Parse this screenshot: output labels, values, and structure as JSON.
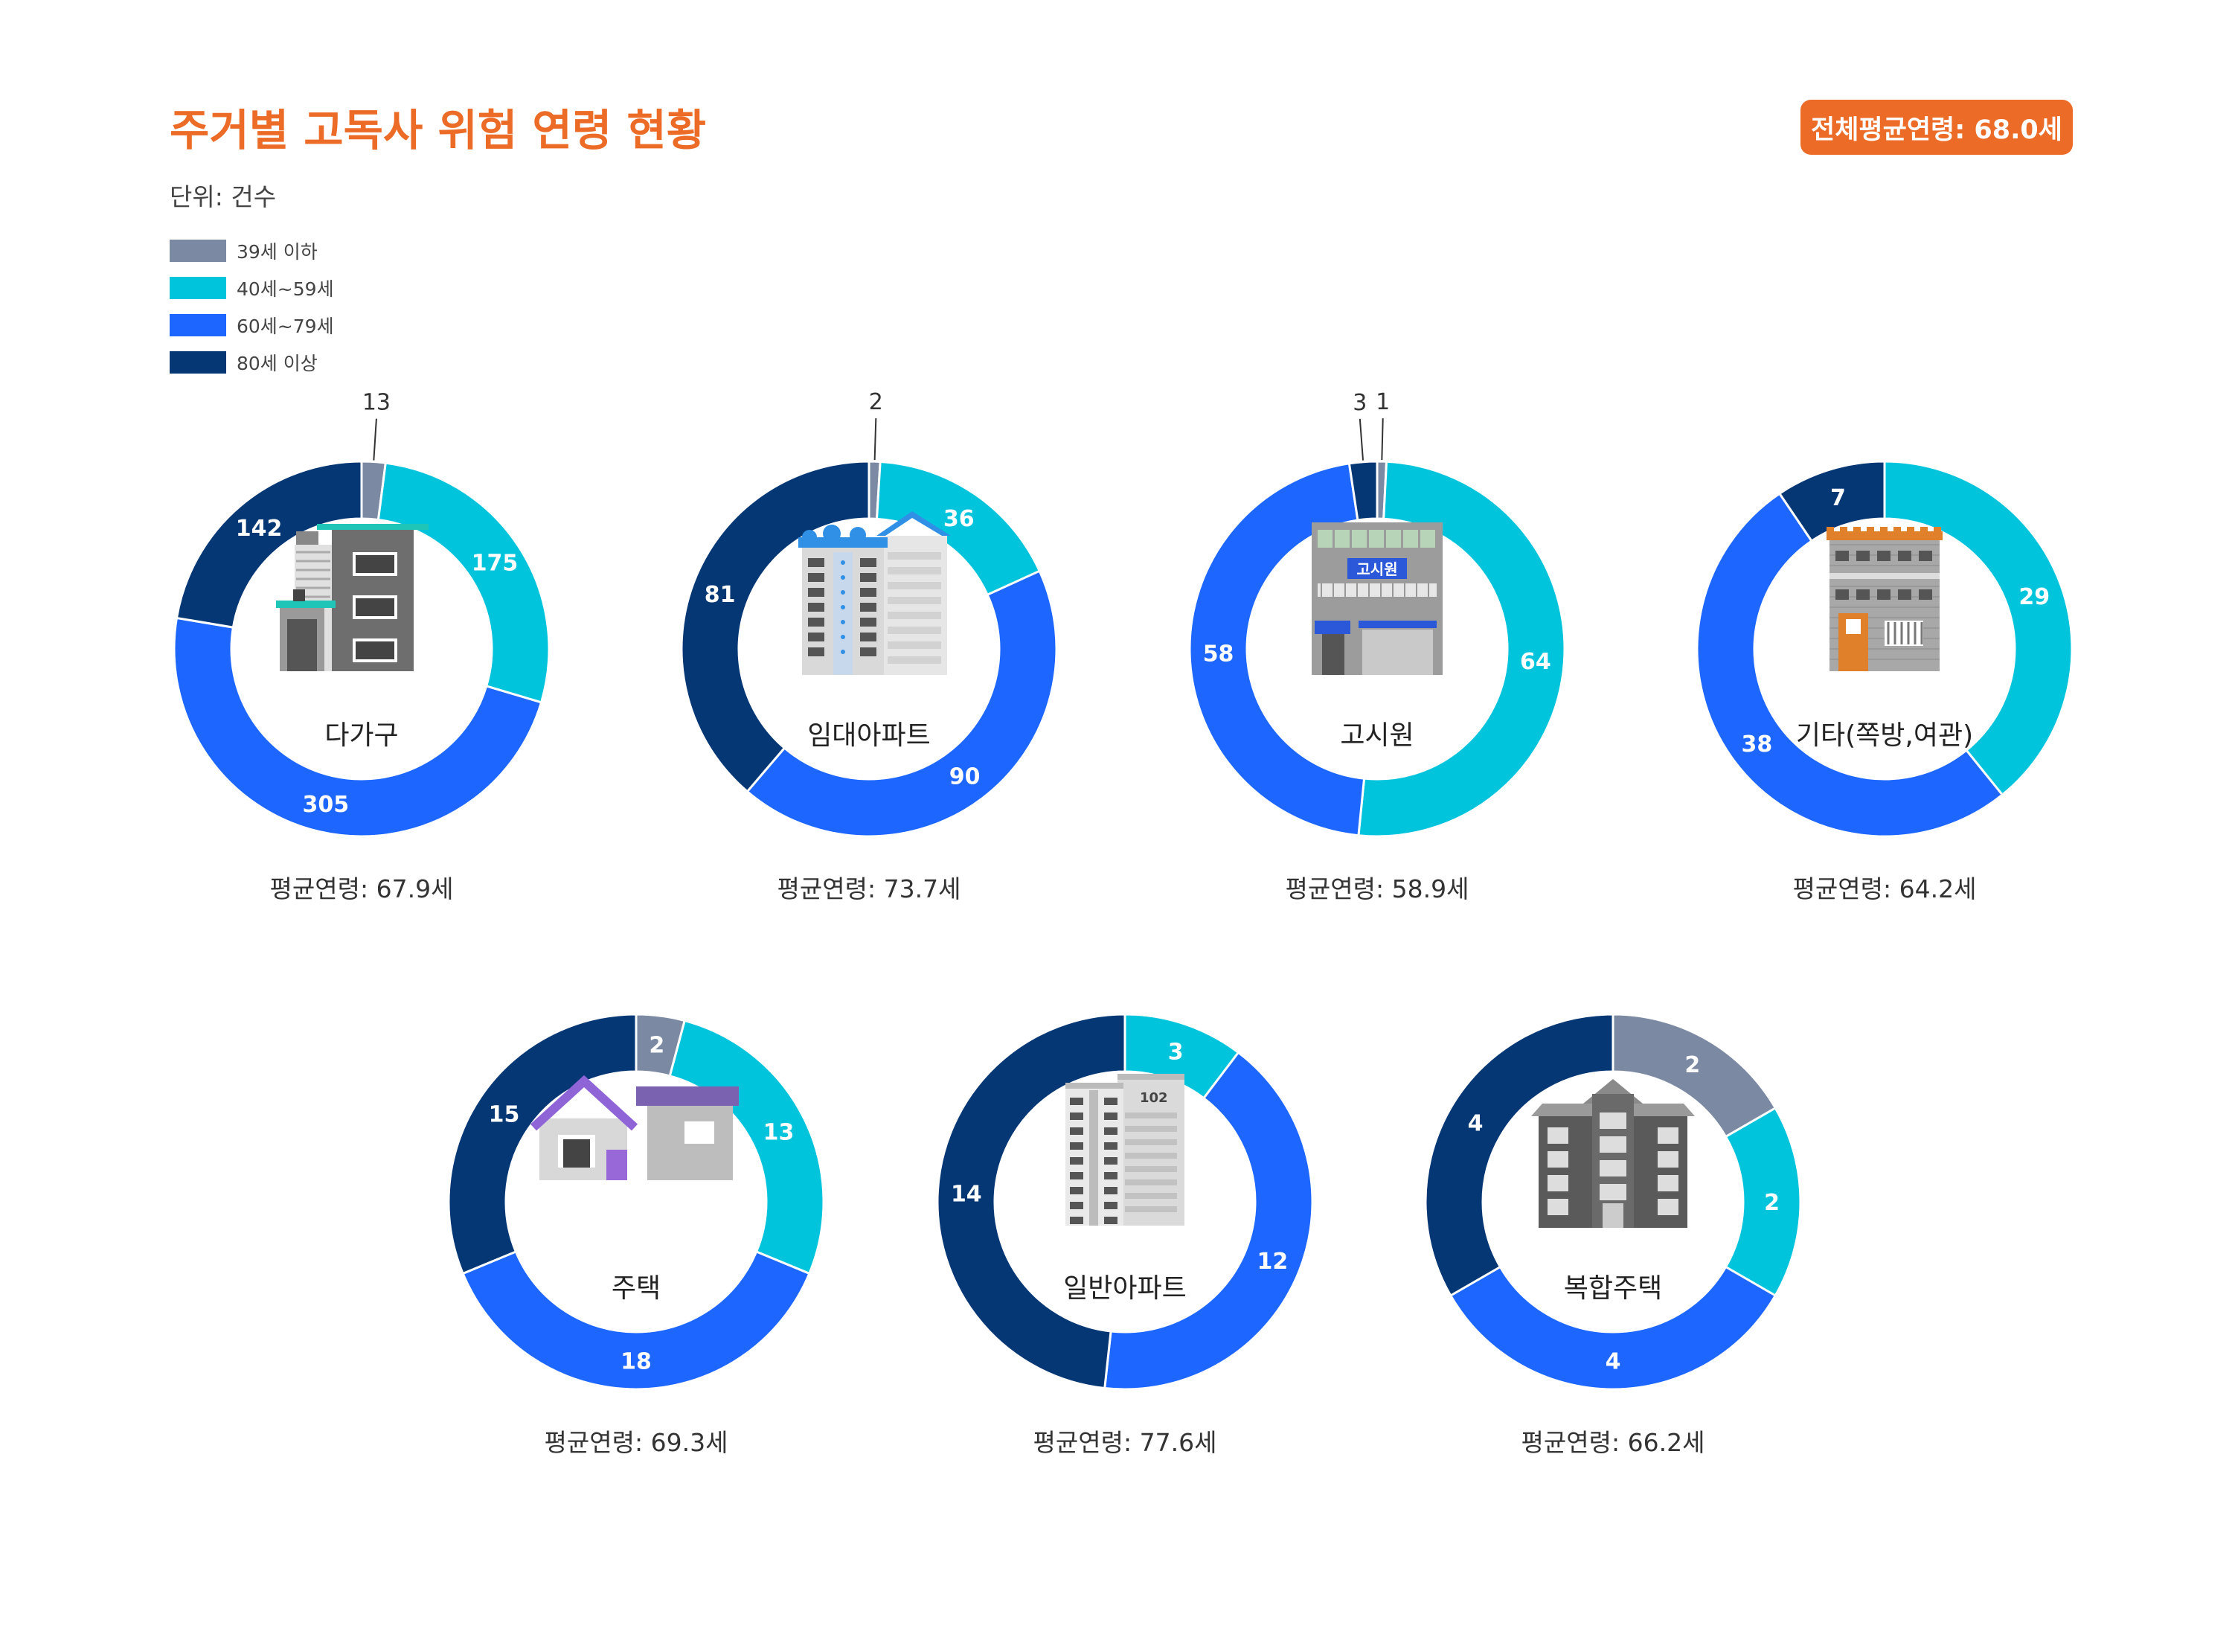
{
  "title": "주거별 고독사 위험 연령 현황",
  "overall_average": "전체평균연령: 68.0세",
  "unit": "단위: 건수",
  "legend": [
    {
      "label": "39세 이하",
      "color": "#7b89a3"
    },
    {
      "label": "40세~59세",
      "color": "#00c4dc"
    },
    {
      "label": "60세~79세",
      "color": "#1d66ff"
    },
    {
      "label": "80세 이상",
      "color": "#063775"
    }
  ],
  "chart_data": [
    {
      "type": "pie",
      "name": "다가구",
      "values": [
        13,
        175,
        305,
        142
      ],
      "average": "평균연령: 67.9세",
      "icon": "multi-family-house-icon"
    },
    {
      "type": "pie",
      "name": "임대아파트",
      "values": [
        2,
        36,
        90,
        81
      ],
      "average": "평균연령: 73.7세",
      "icon": "rental-apartment-icon"
    },
    {
      "type": "pie",
      "name": "고시원",
      "values": [
        1,
        64,
        58,
        3
      ],
      "average": "평균연령: 58.9세",
      "icon": "gosiwon-building-icon",
      "sign": "고시원"
    },
    {
      "type": "pie",
      "name": "기타(쪽방,여관)",
      "values": [
        0,
        29,
        38,
        7
      ],
      "average": "평균연령: 64.2세",
      "icon": "inn-building-icon"
    },
    {
      "type": "pie",
      "name": "주택",
      "values": [
        2,
        13,
        18,
        15
      ],
      "average": "평균연령: 69.3세",
      "icon": "house-icon"
    },
    {
      "type": "pie",
      "name": "일반아파트",
      "values": [
        0,
        3,
        12,
        14
      ],
      "average": "평균연령: 77.6세",
      "icon": "apartment-icon",
      "sign": "102"
    },
    {
      "type": "pie",
      "name": "복합주택",
      "values": [
        2,
        2,
        4,
        4
      ],
      "average": "평균연령: 66.2세",
      "icon": "complex-housing-icon"
    }
  ]
}
